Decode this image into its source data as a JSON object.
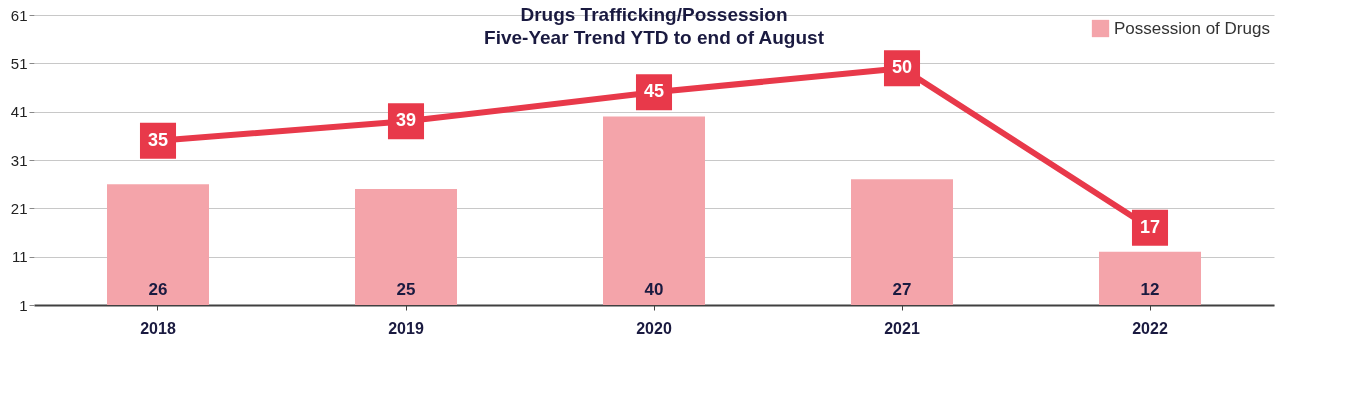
{
  "chart_data": {
    "type": "bar",
    "title": "Drugs Trafficking/Possession",
    "subtitle": "Five-Year Trend YTD to end of August",
    "categories": [
      "2018",
      "2019",
      "2020",
      "2021",
      "2022"
    ],
    "series": [
      {
        "name": "Possession of Drugs",
        "color": "#f4a4aa",
        "values": [
          26,
          25,
          40,
          27,
          12
        ]
      },
      {
        "type": "line",
        "color": "#e8394a",
        "marker": "square",
        "values": [
          35,
          39,
          45,
          50,
          17
        ]
      }
    ],
    "ylim": [
      1,
      61
    ],
    "yticks": [
      1,
      11,
      21,
      31,
      41,
      51,
      61
    ],
    "grid": "y",
    "legend": "top right",
    "data_labels": true
  }
}
